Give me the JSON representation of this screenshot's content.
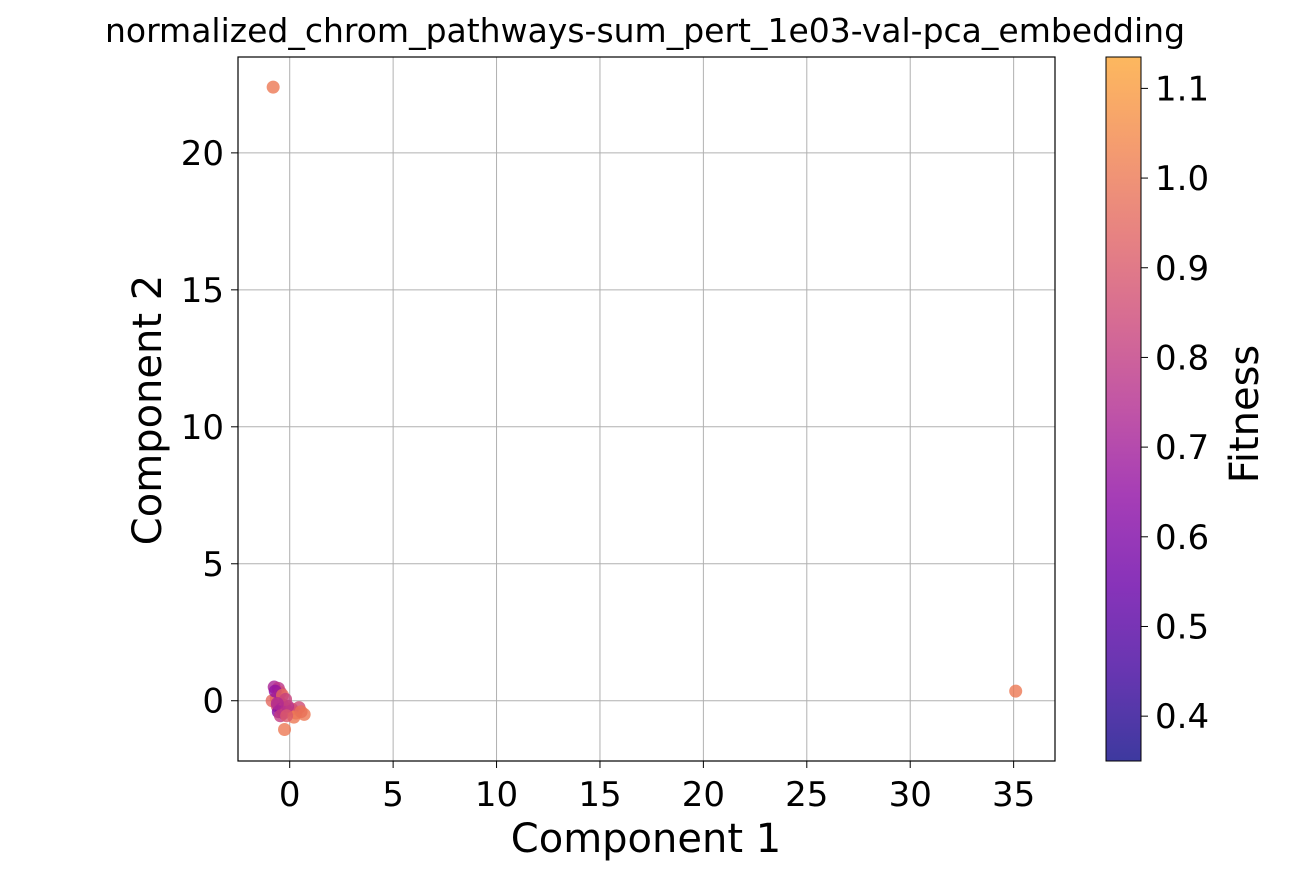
{
  "chart_data": {
    "type": "scatter",
    "title": "normalized_chrom_pathways-sum_pert_1e03-val-pca_embedding",
    "xlabel": "Component 1",
    "ylabel": "Component 2",
    "xlim": [
      -2.5,
      37
    ],
    "ylim": [
      -2.2,
      23.5
    ],
    "xticks": [
      0,
      5,
      10,
      15,
      20,
      25,
      30,
      35
    ],
    "yticks": [
      0,
      5,
      10,
      15,
      20
    ],
    "xtick_labels": [
      "0",
      "5",
      "10",
      "15",
      "20",
      "25",
      "30",
      "35"
    ],
    "ytick_labels": [
      "0",
      "5",
      "10",
      "15",
      "20"
    ],
    "grid": true,
    "colorbar": {
      "label": "Fitness",
      "colormap": "plasma",
      "range": [
        0.35,
        1.135
      ],
      "ticks": [
        0.4,
        0.5,
        0.6,
        0.7,
        0.8,
        0.9,
        1.0,
        1.1
      ],
      "tick_labels": [
        "0.4",
        "0.5",
        "0.6",
        "0.7",
        "0.8",
        "0.9",
        "1.0",
        "1.1"
      ]
    },
    "points": [
      {
        "x": -0.8,
        "y": 22.4,
        "c": 1.0
      },
      {
        "x": 35.1,
        "y": 0.35,
        "c": 1.0
      },
      {
        "x": -0.75,
        "y": 0.5,
        "c": 0.72
      },
      {
        "x": -0.55,
        "y": 0.45,
        "c": 0.78
      },
      {
        "x": -0.45,
        "y": 0.3,
        "c": 0.86
      },
      {
        "x": -0.65,
        "y": 0.1,
        "c": 0.92
      },
      {
        "x": -0.85,
        "y": 0.0,
        "c": 0.95
      },
      {
        "x": -0.5,
        "y": -0.05,
        "c": 0.8
      },
      {
        "x": -0.35,
        "y": -0.15,
        "c": 0.75
      },
      {
        "x": -0.6,
        "y": -0.2,
        "c": 0.88
      },
      {
        "x": -0.4,
        "y": -0.3,
        "c": 0.68
      },
      {
        "x": -0.25,
        "y": -0.25,
        "c": 0.9
      },
      {
        "x": -0.55,
        "y": -0.4,
        "c": 0.62
      },
      {
        "x": -0.3,
        "y": -0.45,
        "c": 0.7
      },
      {
        "x": -0.15,
        "y": -0.35,
        "c": 0.84
      },
      {
        "x": -0.45,
        "y": -0.55,
        "c": 0.8
      },
      {
        "x": 0.1,
        "y": -0.3,
        "c": 0.93
      },
      {
        "x": 0.3,
        "y": -0.45,
        "c": 0.97
      },
      {
        "x": 0.45,
        "y": -0.25,
        "c": 0.85
      },
      {
        "x": 0.2,
        "y": -0.6,
        "c": 1.0
      },
      {
        "x": 0.7,
        "y": -0.5,
        "c": 1.0
      },
      {
        "x": 0.55,
        "y": -0.4,
        "c": 0.98
      },
      {
        "x": -0.25,
        "y": -1.05,
        "c": 1.0
      },
      {
        "x": -0.1,
        "y": -0.2,
        "c": 0.76
      },
      {
        "x": -0.7,
        "y": 0.35,
        "c": 0.66
      },
      {
        "x": -0.35,
        "y": 0.2,
        "c": 0.95
      },
      {
        "x": -0.2,
        "y": 0.05,
        "c": 0.82
      },
      {
        "x": -0.6,
        "y": -0.1,
        "c": 0.74
      },
      {
        "x": -0.15,
        "y": -0.55,
        "c": 0.9
      }
    ]
  }
}
